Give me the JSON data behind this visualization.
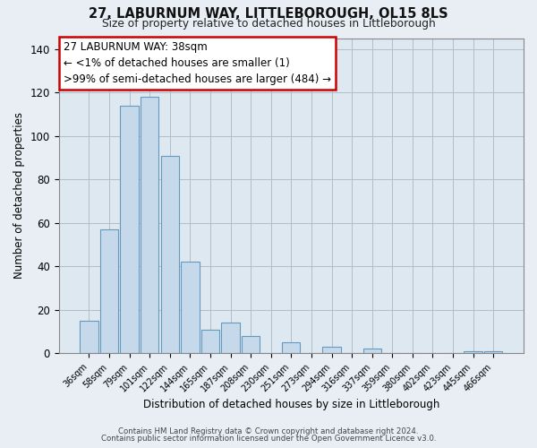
{
  "title": "27, LABURNUM WAY, LITTLEBOROUGH, OL15 8LS",
  "subtitle": "Size of property relative to detached houses in Littleborough",
  "xlabel": "Distribution of detached houses by size in Littleborough",
  "ylabel": "Number of detached properties",
  "bar_color": "#c5d9eb",
  "bar_edge_color": "#6699bb",
  "categories": [
    "36sqm",
    "58sqm",
    "79sqm",
    "101sqm",
    "122sqm",
    "144sqm",
    "165sqm",
    "187sqm",
    "208sqm",
    "230sqm",
    "251sqm",
    "273sqm",
    "294sqm",
    "316sqm",
    "337sqm",
    "359sqm",
    "380sqm",
    "402sqm",
    "423sqm",
    "445sqm",
    "466sqm"
  ],
  "values": [
    15,
    57,
    114,
    118,
    91,
    42,
    11,
    14,
    8,
    0,
    5,
    0,
    3,
    0,
    2,
    0,
    0,
    0,
    0,
    1,
    1
  ],
  "ylim": [
    0,
    145
  ],
  "yticks": [
    0,
    20,
    40,
    60,
    80,
    100,
    120,
    140
  ],
  "annotation_title": "27 LABURNUM WAY: 38sqm",
  "annotation_line1": "← <1% of detached houses are smaller (1)",
  "annotation_line2": ">99% of semi-detached houses are larger (484) →",
  "annotation_box_color": "#ffffff",
  "annotation_box_edge_color": "#cc0000",
  "footnote1": "Contains HM Land Registry data © Crown copyright and database right 2024.",
  "footnote2": "Contains public sector information licensed under the Open Government Licence v3.0.",
  "background_color": "#e8eef4",
  "plot_background_color": "#dde8f0",
  "grid_color": "#b0bec8"
}
